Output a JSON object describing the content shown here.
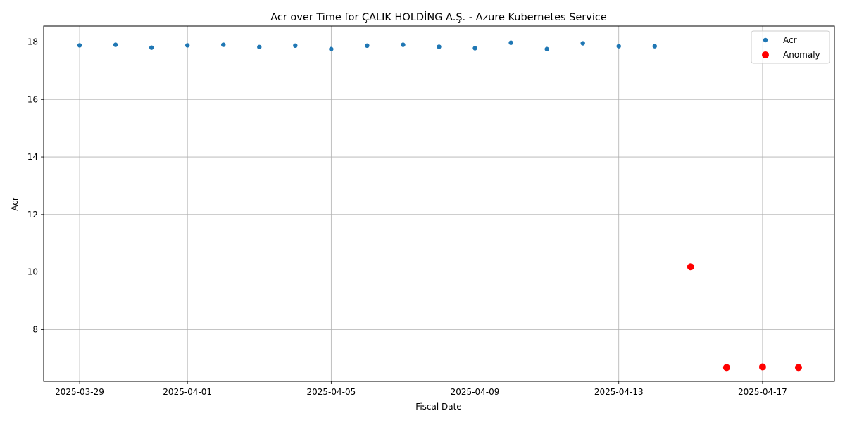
{
  "chart_data": {
    "type": "scatter",
    "title": "Acr over Time for ÇALIK HOLDİNG A.Ş. - Azure Kubernetes Service",
    "xlabel": "Fiscal Date",
    "ylabel": "Acr",
    "x_ticks": [
      "2025-03-29",
      "2025-04-01",
      "2025-04-05",
      "2025-04-09",
      "2025-04-13",
      "2025-04-17"
    ],
    "y_ticks": [
      8,
      10,
      12,
      14,
      16,
      18
    ],
    "xlim": [
      "2025-03-28",
      "2025-04-19"
    ],
    "ylim": [
      6.2,
      18.55
    ],
    "grid": true,
    "legend_position": "top-right",
    "series": [
      {
        "name": "Acr",
        "color": "#1f77b4",
        "points": [
          {
            "x": "2025-03-29",
            "y": 17.88
          },
          {
            "x": "2025-03-30",
            "y": 17.9
          },
          {
            "x": "2025-03-31",
            "y": 17.8
          },
          {
            "x": "2025-04-01",
            "y": 17.88
          },
          {
            "x": "2025-04-02",
            "y": 17.9
          },
          {
            "x": "2025-04-03",
            "y": 17.82
          },
          {
            "x": "2025-04-04",
            "y": 17.87
          },
          {
            "x": "2025-04-05",
            "y": 17.75
          },
          {
            "x": "2025-04-06",
            "y": 17.87
          },
          {
            "x": "2025-04-07",
            "y": 17.9
          },
          {
            "x": "2025-04-08",
            "y": 17.83
          },
          {
            "x": "2025-04-09",
            "y": 17.78
          },
          {
            "x": "2025-04-10",
            "y": 17.97
          },
          {
            "x": "2025-04-11",
            "y": 17.75
          },
          {
            "x": "2025-04-12",
            "y": 17.95
          },
          {
            "x": "2025-04-13",
            "y": 17.85
          },
          {
            "x": "2025-04-14",
            "y": 17.85
          }
        ]
      },
      {
        "name": "Anomaly",
        "color": "#ff0000",
        "points": [
          {
            "x": "2025-04-15",
            "y": 10.18
          },
          {
            "x": "2025-04-16",
            "y": 6.68
          },
          {
            "x": "2025-04-17",
            "y": 6.7
          },
          {
            "x": "2025-04-18",
            "y": 6.68
          }
        ]
      }
    ]
  }
}
